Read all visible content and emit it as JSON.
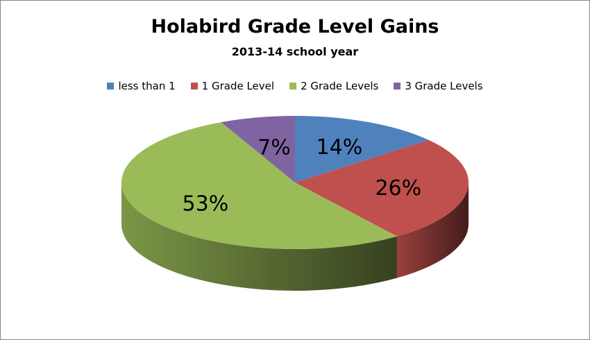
{
  "chart_data": {
    "type": "pie",
    "title": "Holabird Grade Level Gains",
    "subtitle": "2013-14 school year",
    "legend_position": "top",
    "three_d": true,
    "slices": [
      {
        "label": "less than 1",
        "value": 14,
        "display": "14%",
        "color": "#4f81bd"
      },
      {
        "label": "1 Grade Level",
        "value": 26,
        "display": "26%",
        "color": "#c0504d"
      },
      {
        "label": "2 Grade Levels",
        "value": 53,
        "display": "53%",
        "color": "#9bbb59"
      },
      {
        "label": "3 Grade Levels",
        "value": 7,
        "display": "7%",
        "color": "#8064a2"
      }
    ]
  }
}
